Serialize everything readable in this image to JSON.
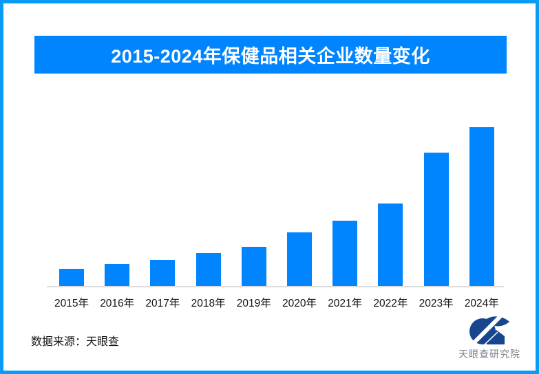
{
  "banner": {
    "title": "2015-2024年保健品相关企业数量变化"
  },
  "chart_data": {
    "type": "bar",
    "title": "2015-2024年保健品相关企业数量变化",
    "categories": [
      "2015年",
      "2016年",
      "2017年",
      "2018年",
      "2019年",
      "2020年",
      "2021年",
      "2022年",
      "2023年",
      "2024年"
    ],
    "values_relative": [
      11.2,
      14.2,
      16.8,
      21.1,
      25.0,
      34.1,
      41.4,
      52.2,
      84.1,
      100
    ],
    "value_note": "no numeric y-axis, gridlines or data labels are shown in the chart; values are relative bar heights with 2024 = 100",
    "xlabel": "",
    "ylabel": "",
    "grid": false,
    "legend": false,
    "bar_color": "#0085ff",
    "axis_line_color": "#dedede"
  },
  "footer": {
    "source_label": "数据来源：天眼查"
  },
  "logo": {
    "icon": "tianyancha-eye-house-logo",
    "text": "天眼查研究院",
    "mark_color": "#17468f",
    "text_color": "#7b828c"
  },
  "colors": {
    "frame_border": "#0a9bf5",
    "banner_background": "#0085ff",
    "banner_text": "#ffffff",
    "label_text": "#141414"
  }
}
